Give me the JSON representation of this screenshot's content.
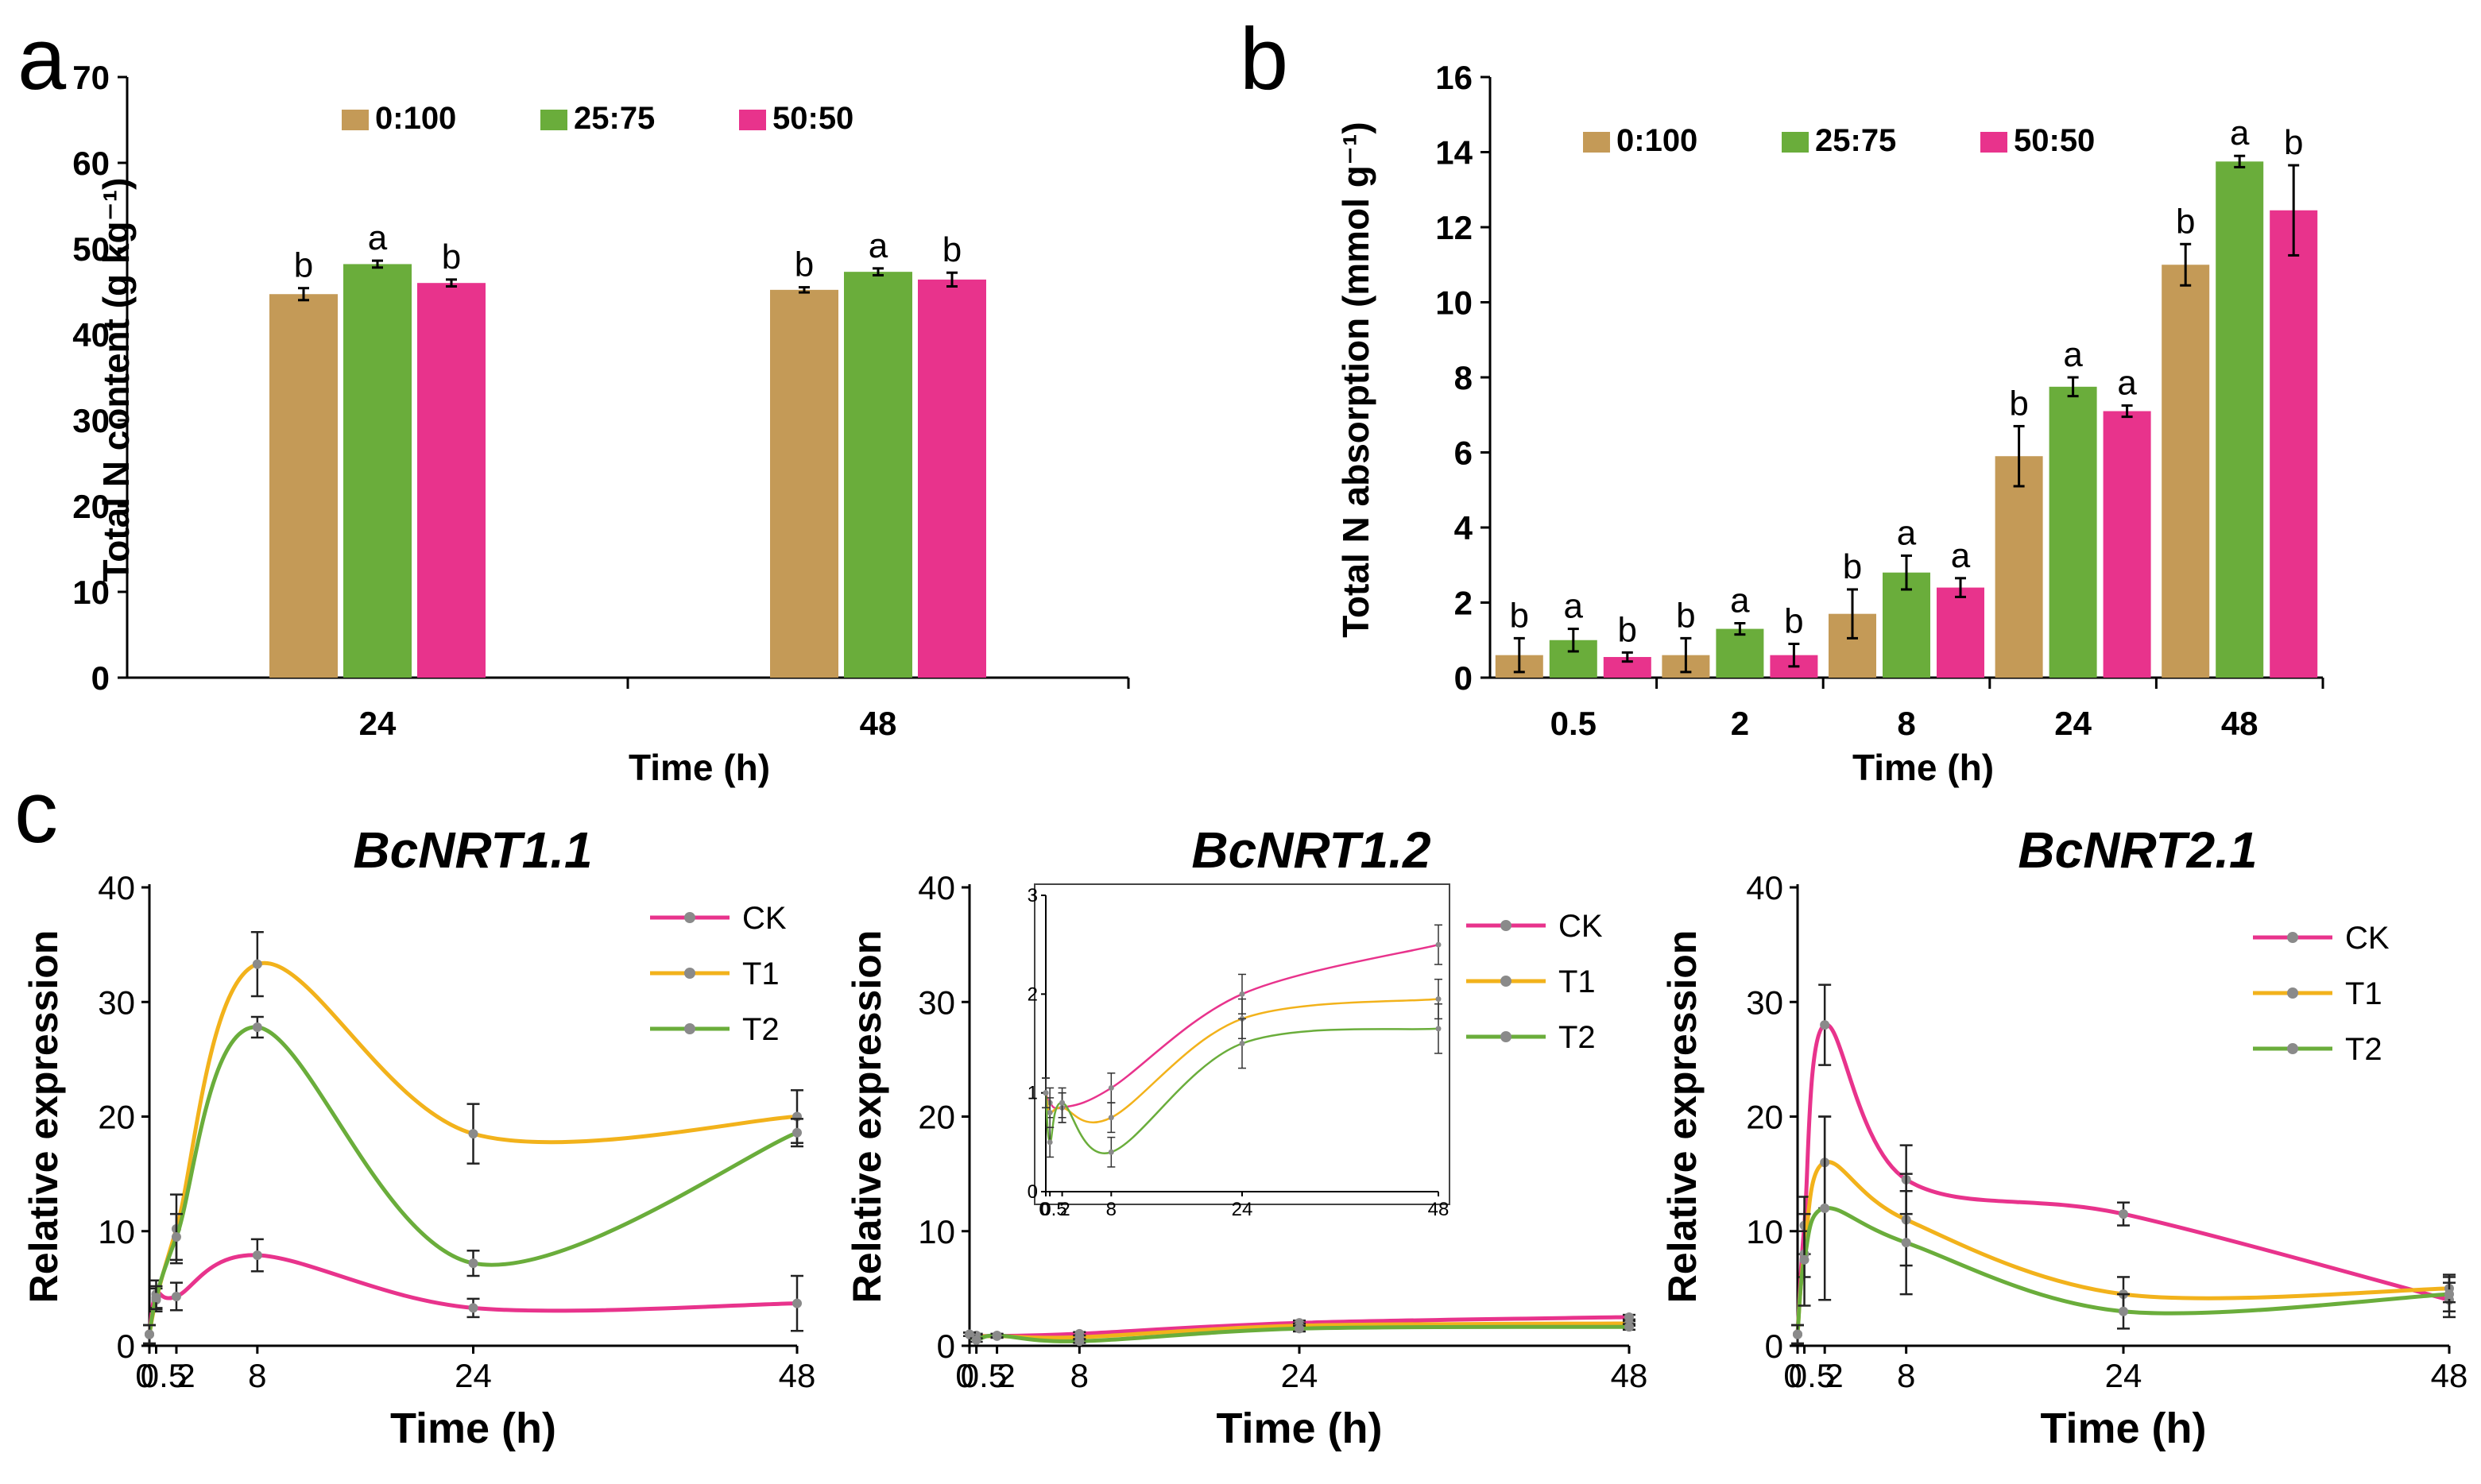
{
  "panels": {
    "a": {
      "letter": "a"
    },
    "b": {
      "letter": "b"
    },
    "c": {
      "letter": "c"
    }
  },
  "chart_data": [
    {
      "id": "a",
      "type": "bar",
      "title": "",
      "xlabel": "Time (h)",
      "ylabel": "Total N content (g kg⁻¹)",
      "ylim": [
        0,
        70
      ],
      "yticks": [
        0,
        10,
        20,
        30,
        40,
        50,
        60,
        70
      ],
      "categories": [
        "24",
        "48"
      ],
      "series": [
        {
          "name": "0:100",
          "color": "#c49a57",
          "values": [
            44.7,
            45.2
          ],
          "errors": [
            0.7,
            0.3
          ],
          "letters": [
            "b",
            "b"
          ]
        },
        {
          "name": "25:75",
          "color": "#6aad3b",
          "values": [
            48.2,
            47.3
          ],
          "errors": [
            0.4,
            0.4
          ],
          "letters": [
            "a",
            "a"
          ]
        },
        {
          "name": "50:50",
          "color": "#e8338c",
          "values": [
            46.0,
            46.4
          ],
          "errors": [
            0.4,
            0.8
          ],
          "letters": [
            "b",
            "b"
          ]
        }
      ],
      "legend": "top"
    },
    {
      "id": "b",
      "type": "bar",
      "title": "",
      "xlabel": "Time (h)",
      "ylabel": "Total N absorption  (mmol g⁻¹)",
      "ylim": [
        0,
        16
      ],
      "yticks": [
        0,
        2,
        4,
        6,
        8,
        10,
        12,
        14,
        16
      ],
      "categories": [
        "0.5",
        "2",
        "8",
        "24",
        "48"
      ],
      "series": [
        {
          "name": "0:100",
          "color": "#c49a57",
          "values": [
            0.6,
            0.6,
            1.7,
            5.9,
            11.0
          ],
          "errors": [
            0.45,
            0.45,
            0.65,
            0.8,
            0.55
          ],
          "letters": [
            "b",
            "b",
            "b",
            "b",
            "b"
          ]
        },
        {
          "name": "25:75",
          "color": "#6aad3b",
          "values": [
            1.0,
            1.3,
            2.8,
            7.75,
            13.75
          ],
          "errors": [
            0.3,
            0.15,
            0.45,
            0.25,
            0.15
          ],
          "letters": [
            "a",
            "a",
            "a",
            "a",
            "a"
          ]
        },
        {
          "name": "50:50",
          "color": "#e8338c",
          "values": [
            0.55,
            0.6,
            2.4,
            7.1,
            12.45
          ],
          "errors": [
            0.12,
            0.3,
            0.25,
            0.15,
            1.2
          ],
          "letters": [
            "b",
            "b",
            "a",
            "a",
            "b"
          ]
        }
      ],
      "legend": "top"
    },
    {
      "id": "c1",
      "type": "line",
      "title": "BcNRT1.1",
      "xlabel": "Time (h)",
      "ylabel": "Relative expression",
      "ylim": [
        0,
        40
      ],
      "yticks": [
        0,
        10,
        20,
        30,
        40
      ],
      "xticks": [
        "0",
        "0.5",
        "2",
        "8",
        "24",
        "48"
      ],
      "x": [
        0,
        0.5,
        2,
        8,
        24,
        48
      ],
      "series": [
        {
          "name": "CK",
          "color": "#e8338c",
          "values": [
            1,
            4.5,
            4.3,
            7.9,
            3.3,
            3.7
          ],
          "errors": [
            0.8,
            1.2,
            1.2,
            1.4,
            0.8,
            2.4
          ]
        },
        {
          "name": "T1",
          "color": "#f2b21b",
          "values": [
            1,
            4,
            10.2,
            33.3,
            18.5,
            20.0
          ],
          "errors": [
            0.8,
            1.0,
            3.0,
            2.8,
            2.6,
            2.3
          ]
        },
        {
          "name": "T2",
          "color": "#6aad3b",
          "values": [
            1,
            4.2,
            9.5,
            27.8,
            7.2,
            18.6
          ],
          "errors": [
            0.8,
            1.0,
            2.0,
            0.9,
            1.1,
            1.2
          ]
        }
      ],
      "legend": "top-right"
    },
    {
      "id": "c2",
      "type": "line",
      "title": "BcNRT1.2",
      "xlabel": "Time (h)",
      "ylabel": "Relative expression",
      "ylim": [
        0,
        40
      ],
      "yticks": [
        0,
        10,
        20,
        30,
        40
      ],
      "xticks": [
        "0",
        "0.5",
        "2",
        "8",
        "24",
        "48"
      ],
      "x": [
        0,
        0.5,
        2,
        8,
        24,
        48
      ],
      "series": [
        {
          "name": "CK",
          "color": "#e8338c",
          "values": [
            1,
            0.9,
            0.85,
            1.05,
            2.0,
            2.5
          ],
          "errors": [
            0.15,
            0.15,
            0.15,
            0.15,
            0.2,
            0.2
          ]
        },
        {
          "name": "T1",
          "color": "#f2b21b",
          "values": [
            1,
            0.8,
            0.85,
            0.75,
            1.75,
            1.95
          ],
          "errors": [
            0.15,
            0.15,
            0.15,
            0.15,
            0.2,
            0.2
          ]
        },
        {
          "name": "T2",
          "color": "#6aad3b",
          "values": [
            1,
            0.5,
            0.9,
            0.4,
            1.5,
            1.65
          ],
          "errors": [
            0.15,
            0.15,
            0.15,
            0.15,
            0.25,
            0.25
          ]
        }
      ],
      "legend": "top-right",
      "inset": {
        "ylim": [
          0,
          3
        ],
        "yticks": [
          0,
          1,
          2,
          3
        ],
        "xticks": [
          "0",
          "0.5",
          "2",
          "8",
          "24",
          "48"
        ]
      }
    },
    {
      "id": "c3",
      "type": "line",
      "title": "BcNRT2.1",
      "xlabel": "Time (h)",
      "ylabel": "Relative expression",
      "ylim": [
        0,
        40
      ],
      "yticks": [
        0,
        10,
        20,
        30,
        40
      ],
      "xticks": [
        "0",
        "0.5",
        "2",
        "8",
        "24",
        "48"
      ],
      "x": [
        0,
        0.5,
        2,
        8,
        24,
        48
      ],
      "series": [
        {
          "name": "CK",
          "color": "#e8338c",
          "values": [
            1,
            10.5,
            28.0,
            14.5,
            11.5,
            4.0
          ],
          "errors": [
            0.8,
            2.5,
            3.5,
            3.0,
            1.0,
            1.5
          ]
        },
        {
          "name": "T1",
          "color": "#f2b21b",
          "values": [
            1,
            8.0,
            16.0,
            11.0,
            4.5,
            5.0
          ],
          "errors": [
            0.8,
            2.0,
            4.0,
            4.0,
            1.5,
            1.2
          ]
        },
        {
          "name": "T2",
          "color": "#6aad3b",
          "values": [
            1,
            7.5,
            12.0,
            9.0,
            3.0,
            4.5
          ],
          "errors": [
            0.8,
            4.0,
            8.0,
            4.5,
            1.5,
            1.5
          ]
        }
      ],
      "legend": "top-right"
    }
  ]
}
